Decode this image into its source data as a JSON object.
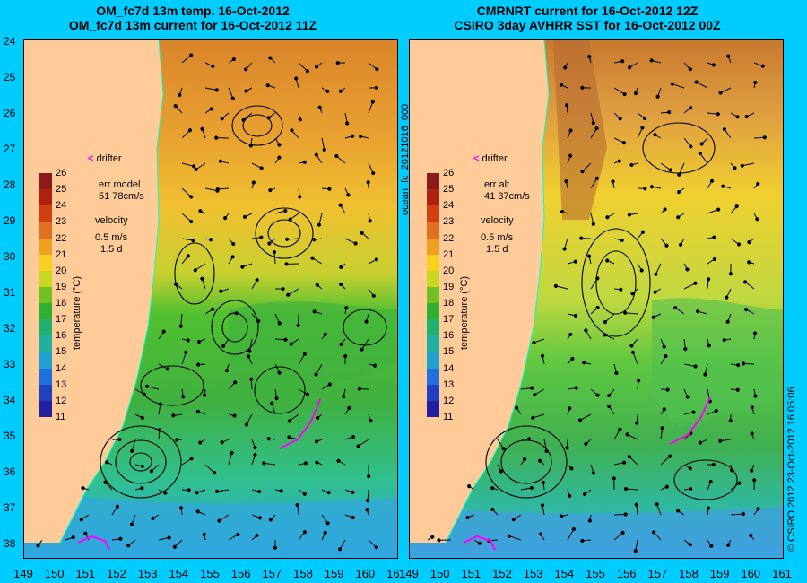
{
  "left_panel": {
    "title_line1": "OM_fc7d 13m temp. 16-Oct-2012",
    "title_line2": "OM_fc7d 13m current for 16-Oct-2012 11Z",
    "err_label": "err model",
    "err_value": "51 78cm/s",
    "velocity_label": "velocity",
    "velocity_scale": "0.5 m/s",
    "velocity_time": "1.5 d",
    "drifter_label": "drifter"
  },
  "right_panel": {
    "title_line1": "CMRNRT current for 16-Oct-2012 12Z",
    "title_line2": "CSIRO 3day AVHRR SST for 16-Oct-2012 00Z",
    "err_label": "err alt",
    "err_value": "41 37cm/s",
    "velocity_label": "velocity",
    "velocity_scale": "0.5 m/s",
    "velocity_time": "1.5 d",
    "drifter_label": "drifter"
  },
  "vertical_label": "ocean_fc_20121016_000",
  "credit_label": "© CSIRO 2012   23-Oct-2012 16:05:06",
  "colorbar": {
    "label": "temperature (°C)",
    "ticks": [
      "26",
      "25",
      "24",
      "23",
      "22",
      "21",
      "20",
      "19",
      "18",
      "17",
      "16",
      "15",
      "14",
      "13",
      "12",
      "11"
    ]
  },
  "y_axis": {
    "ticks": [
      "24",
      "25",
      "26",
      "27",
      "28",
      "29",
      "30",
      "31",
      "32",
      "33",
      "34",
      "35",
      "36",
      "37",
      "38"
    ]
  },
  "x_axis": {
    "ticks": [
      "149",
      "150",
      "151",
      "152",
      "153",
      "154",
      "155",
      "156",
      "157",
      "158",
      "159",
      "160",
      "161"
    ]
  },
  "colors": {
    "background": "#00ccff",
    "land": "#ffcc99",
    "drifter": "#ff00ff",
    "coast": "#00ffcc"
  }
}
